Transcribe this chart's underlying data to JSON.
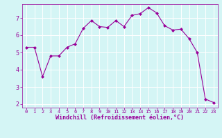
{
  "x": [
    0,
    1,
    2,
    3,
    4,
    5,
    6,
    7,
    8,
    9,
    10,
    11,
    12,
    13,
    14,
    15,
    16,
    17,
    18,
    19,
    20,
    21,
    22,
    23
  ],
  "y": [
    5.3,
    5.3,
    3.6,
    4.8,
    4.8,
    5.3,
    5.5,
    6.4,
    6.85,
    6.5,
    6.45,
    6.85,
    6.5,
    7.15,
    7.25,
    7.6,
    7.3,
    6.55,
    6.3,
    6.35,
    5.8,
    5.0,
    2.3,
    2.1
  ],
  "line_color": "#990099",
  "marker": "D",
  "marker_size": 2.0,
  "bg_color": "#d4f5f5",
  "grid_color": "#b0e0e0",
  "xlabel": "Windchill (Refroidissement éolien,°C)",
  "xlabel_color": "#990099",
  "tick_color": "#990099",
  "label_color": "#990099",
  "ylim": [
    1.8,
    7.8
  ],
  "xlim": [
    -0.5,
    23.5
  ],
  "yticks": [
    2,
    3,
    4,
    5,
    6,
    7
  ],
  "xticks": [
    0,
    1,
    2,
    3,
    4,
    5,
    6,
    7,
    8,
    9,
    10,
    11,
    12,
    13,
    14,
    15,
    16,
    17,
    18,
    19,
    20,
    21,
    22,
    23
  ],
  "xlabel_fontsize": 6.0,
  "ytick_fontsize": 6.0,
  "xtick_fontsize": 5.0
}
